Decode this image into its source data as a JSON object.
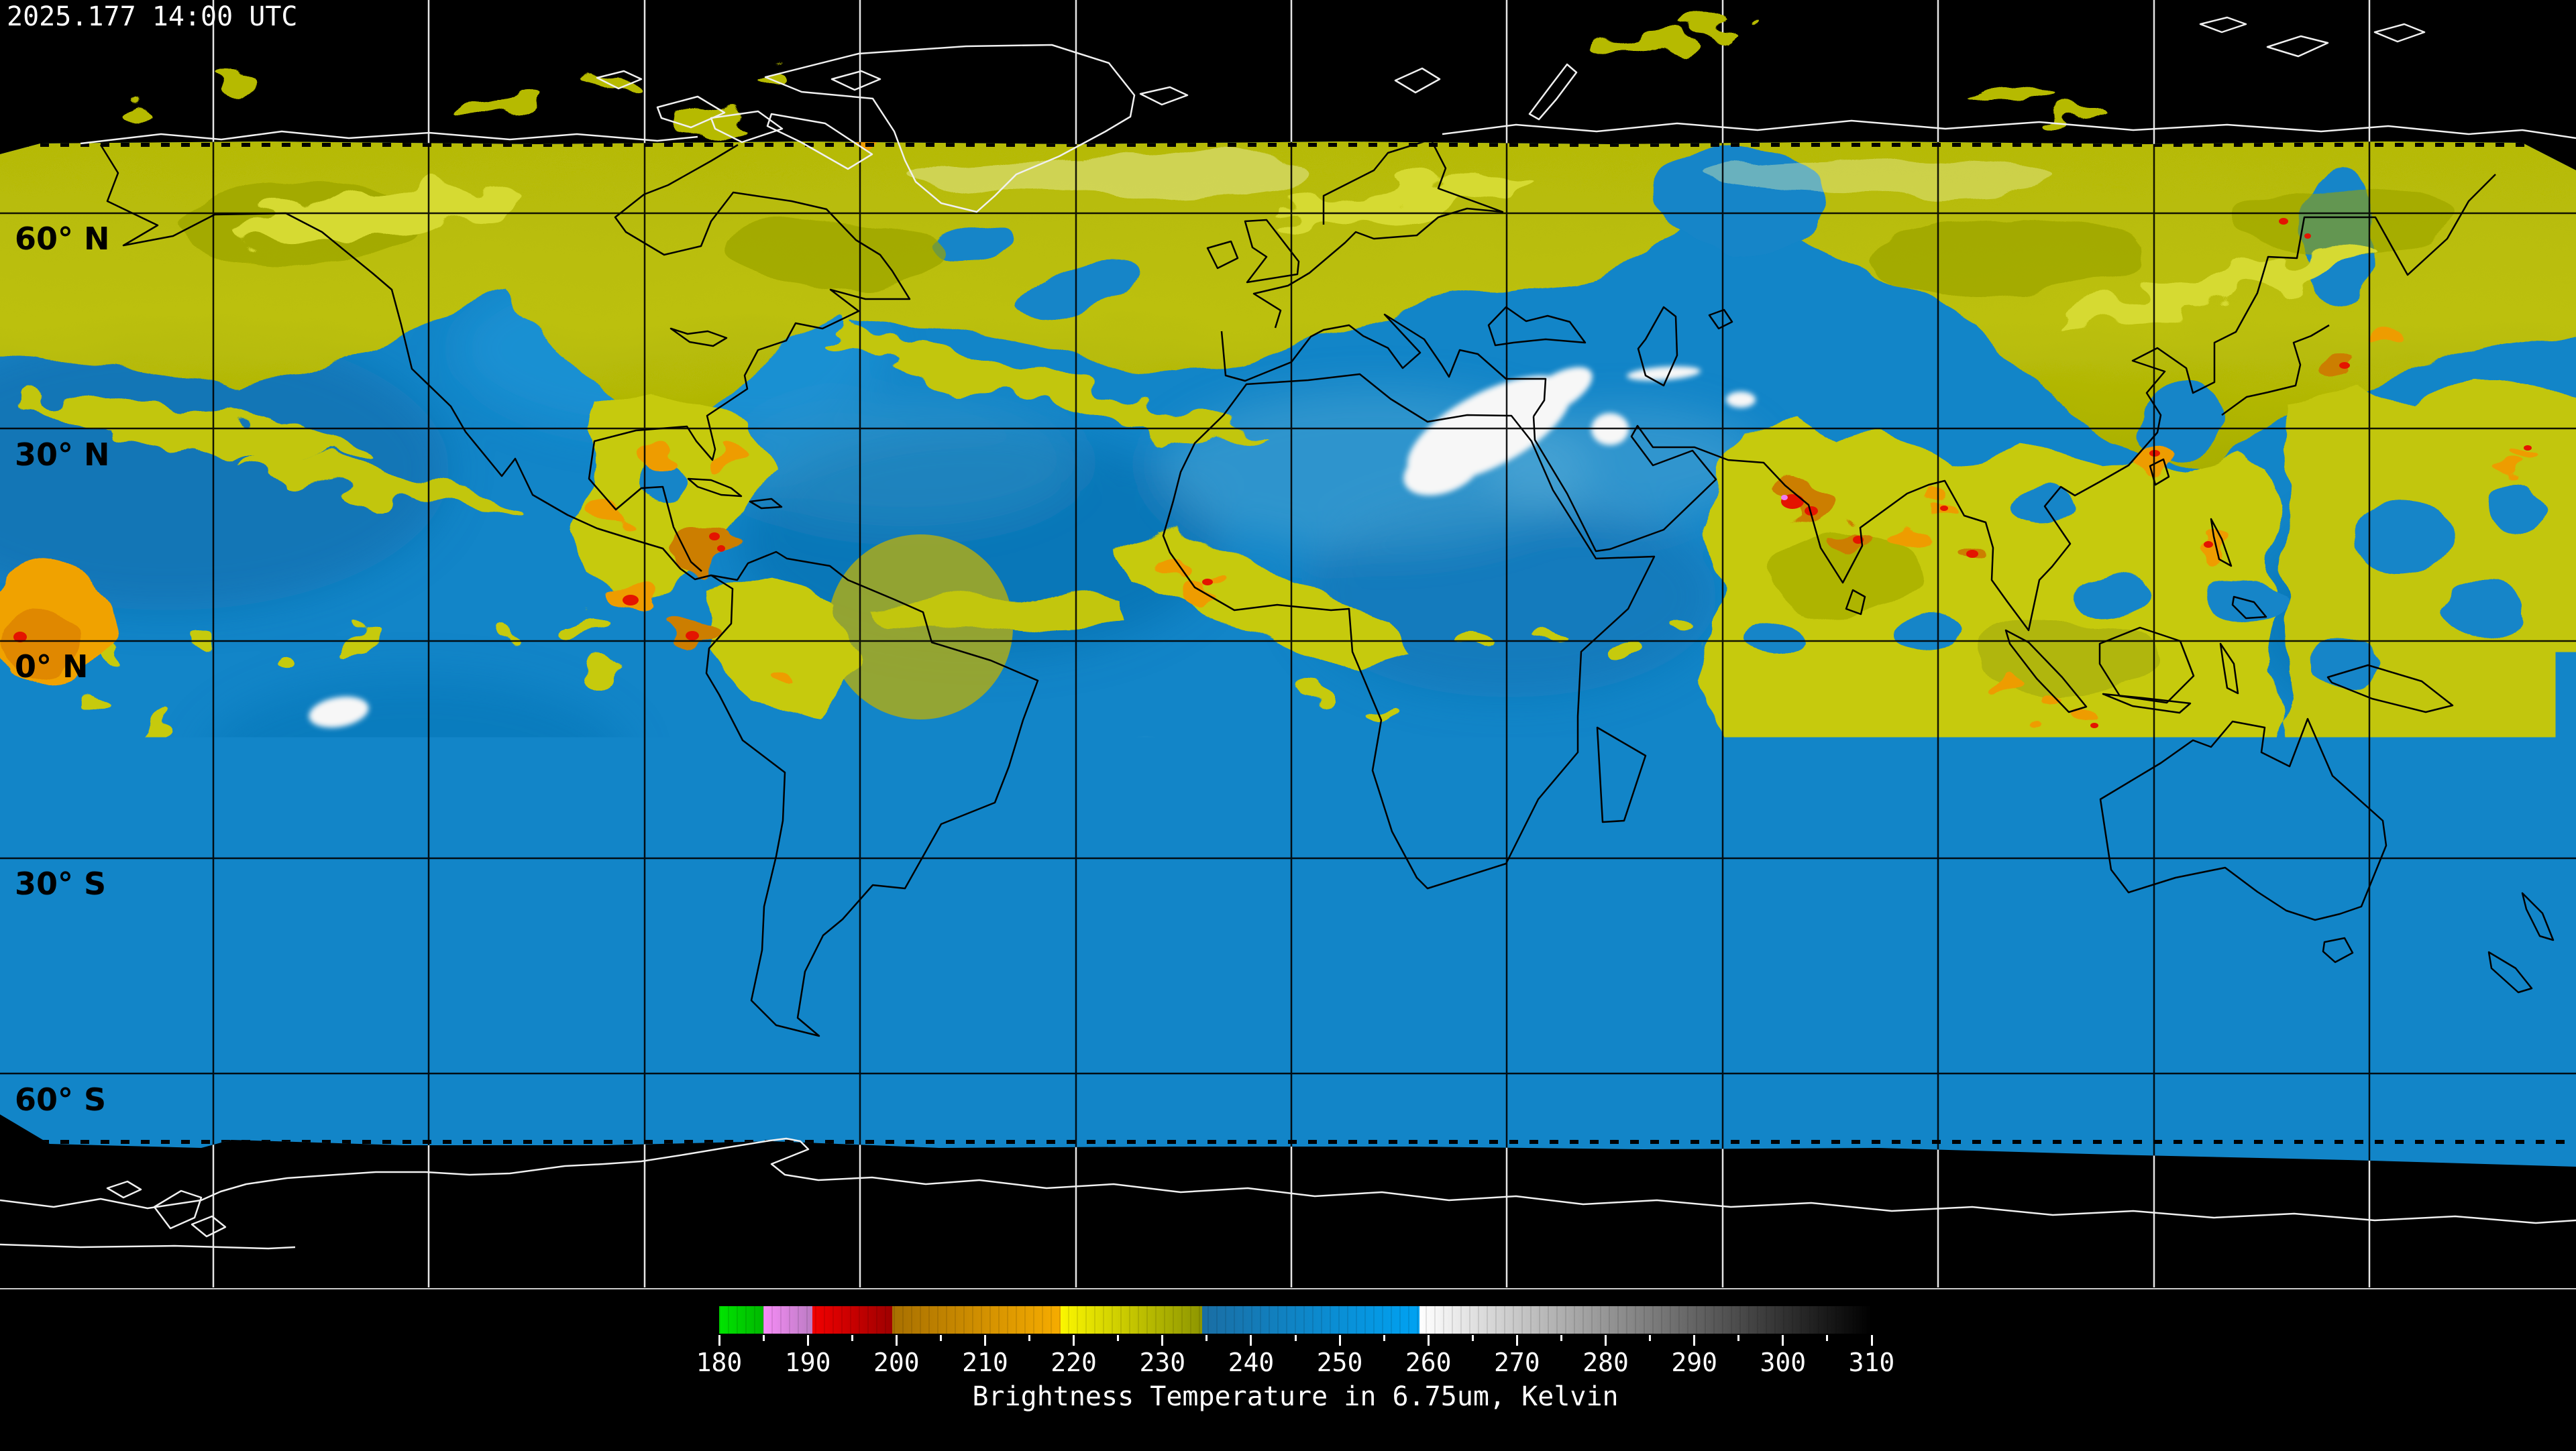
{
  "header": {
    "timestamp": "2025.177 14:00 UTC"
  },
  "map": {
    "latitude_labels": [
      "60° N",
      "30° N",
      "0° N",
      "30° S",
      "60° S"
    ],
    "latitude_gridline_spacing_deg": 30,
    "longitude_gridline_spacing_deg": 30
  },
  "colorbar": {
    "title": "Brightness Temperature in 6.75um, Kelvin",
    "unit": "Kelvin",
    "min": 180,
    "max": 310,
    "major_tick_step": 10,
    "minor_tick_step": 5,
    "tick_labels": [
      "180",
      "190",
      "200",
      "210",
      "220",
      "230",
      "240",
      "250",
      "260",
      "270",
      "280",
      "290",
      "300",
      "310"
    ],
    "segments": [
      {
        "name": "green",
        "from": 180,
        "to": 185,
        "color_start": "#00e400",
        "color_end": "#00b800"
      },
      {
        "name": "violet",
        "from": 185,
        "to": 190.5,
        "color_start": "#f78cf7",
        "color_end": "#bc7cc4"
      },
      {
        "name": "red",
        "from": 190.5,
        "to": 199.5,
        "color_start": "#f20000",
        "color_end": "#9e0000"
      },
      {
        "name": "orange",
        "from": 199.5,
        "to": 218.5,
        "color_start": "#a87000",
        "color_end": "#f6ac00"
      },
      {
        "name": "yellow",
        "from": 218.5,
        "to": 234.5,
        "color_start": "#fbf600",
        "color_end": "#8e9600"
      },
      {
        "name": "blue",
        "from": 234.5,
        "to": 259,
        "color_start": "#1a6ea4",
        "color_end": "#00a2f2"
      },
      {
        "name": "gray",
        "from": 259,
        "to": 310,
        "color_start": "#ffffff",
        "color_end": "#000000"
      }
    ]
  },
  "chart_data": {
    "type": "heatmap",
    "title": "Brightness Temperature in 6.75um, Kelvin",
    "timestamp": "2025.177 14:00 UTC",
    "value_range_kelvin": [
      180,
      310
    ],
    "colorbar_tick_values": [
      180,
      190,
      200,
      210,
      220,
      230,
      240,
      250,
      260,
      270,
      280,
      290,
      300,
      310
    ],
    "latitude_gridlines_deg": [
      60,
      30,
      0,
      -30,
      -60
    ],
    "longitude_gridline_spacing_deg": 30,
    "legend_position": "bottom-center",
    "notes": "Global geostationary composite water-vapor (6.75um) brightness temperature; cold cloud tops yellow/orange/red, dry mid-troposphere blue, very warm/dry scenes white-to-black; polar no-data regions black"
  }
}
